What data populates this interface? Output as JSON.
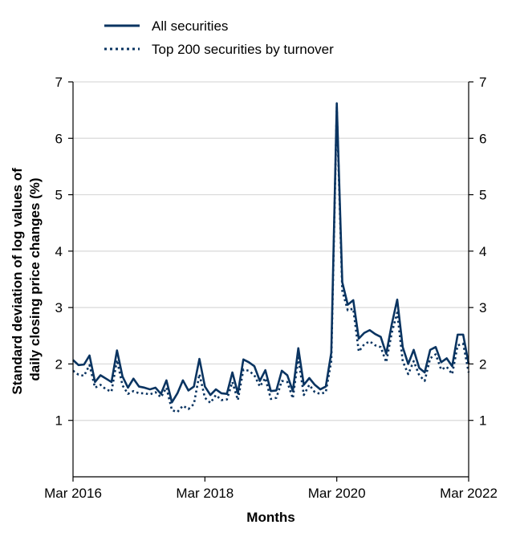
{
  "chart_data": {
    "type": "line",
    "xlabel": "Months",
    "ylabel": [
      "Standard deviation of log values of",
      "daily closing price changes (%)"
    ],
    "ylim": [
      0,
      7
    ],
    "yticks": [
      1,
      2,
      3,
      4,
      5,
      6,
      7
    ],
    "xtick_labels": [
      "Mar 2016",
      "Mar 2018",
      "Mar 2020",
      "Mar 2022"
    ],
    "x_start": "2016-03",
    "x_end": "2022-03",
    "grid": "horizontal",
    "right_axis": "mirrored",
    "legend_position": "top-left",
    "series": [
      {
        "name": "All securities",
        "color": "#0a3461",
        "style": "solid",
        "x": [
          "2016-03",
          "2016-04",
          "2016-05",
          "2016-06",
          "2016-07",
          "2016-08",
          "2016-09",
          "2016-10",
          "2016-11",
          "2016-12",
          "2017-01",
          "2017-02",
          "2017-03",
          "2017-04",
          "2017-05",
          "2017-06",
          "2017-07",
          "2017-08",
          "2017-09",
          "2017-10",
          "2017-11",
          "2017-12",
          "2018-01",
          "2018-02",
          "2018-03",
          "2018-04",
          "2018-05",
          "2018-06",
          "2018-07",
          "2018-08",
          "2018-09",
          "2018-10",
          "2018-11",
          "2018-12",
          "2019-01",
          "2019-02",
          "2019-03",
          "2019-04",
          "2019-05",
          "2019-06",
          "2019-07",
          "2019-08",
          "2019-09",
          "2019-10",
          "2019-11",
          "2019-12",
          "2020-01",
          "2020-02",
          "2020-03",
          "2020-04",
          "2020-05",
          "2020-06",
          "2020-07",
          "2020-08",
          "2020-09",
          "2020-10",
          "2020-11",
          "2020-12",
          "2021-01",
          "2021-02",
          "2021-03",
          "2021-04",
          "2021-05",
          "2021-06",
          "2021-07",
          "2021-08",
          "2021-09",
          "2021-10",
          "2021-11",
          "2021-12",
          "2022-01",
          "2022-02",
          "2022-03"
        ],
        "values": [
          2.07,
          1.98,
          1.99,
          2.15,
          1.68,
          1.8,
          1.74,
          1.68,
          2.24,
          1.78,
          1.58,
          1.74,
          1.6,
          1.58,
          1.55,
          1.58,
          1.47,
          1.71,
          1.32,
          1.48,
          1.71,
          1.53,
          1.6,
          2.09,
          1.6,
          1.45,
          1.55,
          1.48,
          1.47,
          1.85,
          1.48,
          2.08,
          2.03,
          1.96,
          1.7,
          1.89,
          1.52,
          1.53,
          1.88,
          1.8,
          1.52,
          2.28,
          1.63,
          1.75,
          1.63,
          1.55,
          1.6,
          2.2,
          6.62,
          3.45,
          3.05,
          3.13,
          2.45,
          2.55,
          2.6,
          2.53,
          2.48,
          2.18,
          2.7,
          3.14,
          2.3,
          2.0,
          2.25,
          1.93,
          1.85,
          2.25,
          2.3,
          2.03,
          2.1,
          1.96,
          2.52,
          2.52,
          2.0
        ]
      },
      {
        "name": "Top 200 securities by turnover",
        "color": "#0a3461",
        "style": "dotted",
        "x": [
          "2016-03",
          "2016-04",
          "2016-05",
          "2016-06",
          "2016-07",
          "2016-08",
          "2016-09",
          "2016-10",
          "2016-11",
          "2016-12",
          "2017-01",
          "2017-02",
          "2017-03",
          "2017-04",
          "2017-05",
          "2017-06",
          "2017-07",
          "2017-08",
          "2017-09",
          "2017-10",
          "2017-11",
          "2017-12",
          "2018-01",
          "2018-02",
          "2018-03",
          "2018-04",
          "2018-05",
          "2018-06",
          "2018-07",
          "2018-08",
          "2018-09",
          "2018-10",
          "2018-11",
          "2018-12",
          "2019-01",
          "2019-02",
          "2019-03",
          "2019-04",
          "2019-05",
          "2019-06",
          "2019-07",
          "2019-08",
          "2019-09",
          "2019-10",
          "2019-11",
          "2019-12",
          "2020-01",
          "2020-02",
          "2020-03",
          "2020-04",
          "2020-05",
          "2020-06",
          "2020-07",
          "2020-08",
          "2020-09",
          "2020-10",
          "2020-11",
          "2020-12",
          "2021-01",
          "2021-02",
          "2021-03",
          "2021-04",
          "2021-05",
          "2021-06",
          "2021-07",
          "2021-08",
          "2021-09",
          "2021-10",
          "2021-11",
          "2021-12",
          "2022-01",
          "2022-02",
          "2022-03"
        ],
        "values": [
          1.88,
          1.81,
          1.79,
          1.98,
          1.58,
          1.63,
          1.55,
          1.51,
          2.07,
          1.62,
          1.47,
          1.52,
          1.48,
          1.48,
          1.46,
          1.5,
          1.41,
          1.58,
          1.18,
          1.15,
          1.26,
          1.2,
          1.29,
          1.82,
          1.4,
          1.31,
          1.45,
          1.36,
          1.37,
          1.68,
          1.36,
          1.9,
          1.88,
          1.8,
          1.6,
          1.75,
          1.38,
          1.4,
          1.7,
          1.68,
          1.39,
          2.11,
          1.45,
          1.63,
          1.5,
          1.47,
          1.5,
          2.05,
          6.55,
          3.3,
          2.95,
          2.98,
          2.22,
          2.35,
          2.4,
          2.33,
          2.3,
          2.03,
          2.55,
          2.91,
          2.05,
          1.82,
          2.05,
          1.8,
          1.7,
          2.1,
          2.17,
          1.9,
          1.95,
          1.82,
          2.33,
          2.36,
          1.85
        ]
      }
    ]
  }
}
